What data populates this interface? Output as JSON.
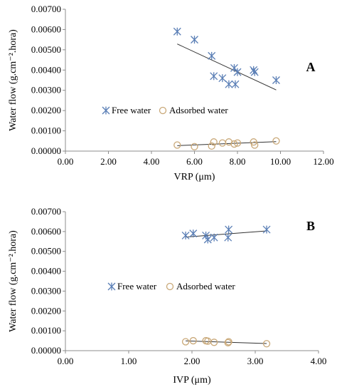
{
  "chart_data": [
    {
      "panel": "A",
      "type": "scatter",
      "xlabel": "VRP (μm)",
      "ylabel": "Water flow (g.cm⁻².hora)",
      "xlim": [
        0,
        12
      ],
      "ylim": [
        0,
        0.007
      ],
      "xticks": [
        "0.00",
        "2.00",
        "4.00",
        "6.00",
        "8.00",
        "10.00",
        "12.00"
      ],
      "yticks": [
        "0.00000",
        "0.00100",
        "0.00200",
        "0.00300",
        "0.00400",
        "0.00500",
        "0.00600",
        "0.00700"
      ],
      "grid": false,
      "legend": "center-left",
      "series": [
        {
          "name": "Free water",
          "marker": "asterisk",
          "color": "#5b7fb6",
          "trendline": true,
          "points": [
            [
              5.2,
              0.0059
            ],
            [
              6.0,
              0.0055
            ],
            [
              6.8,
              0.0047
            ],
            [
              6.9,
              0.0037
            ],
            [
              7.3,
              0.0036
            ],
            [
              7.6,
              0.0033
            ],
            [
              7.85,
              0.0041
            ],
            [
              8.0,
              0.0039
            ],
            [
              7.9,
              0.0033
            ],
            [
              8.75,
              0.004
            ],
            [
              8.8,
              0.0039
            ],
            [
              9.8,
              0.0035
            ]
          ]
        },
        {
          "name": "Adsorbed water",
          "marker": "circle",
          "color": "#c9a878",
          "trendline": true,
          "points": [
            [
              5.2,
              0.0003
            ],
            [
              6.0,
              0.00022
            ],
            [
              6.8,
              0.00025
            ],
            [
              6.9,
              0.00045
            ],
            [
              7.3,
              0.0004
            ],
            [
              7.6,
              0.00045
            ],
            [
              7.85,
              0.00035
            ],
            [
              8.0,
              0.0004
            ],
            [
              8.75,
              0.00045
            ],
            [
              8.8,
              0.0003
            ],
            [
              9.8,
              0.0005
            ]
          ]
        }
      ]
    },
    {
      "panel": "B",
      "type": "scatter",
      "xlabel": "IVP (μm)",
      "ylabel": "Water flow (g.cm⁻².hora)",
      "xlim": [
        0,
        4
      ],
      "ylim": [
        0,
        0.007
      ],
      "xticks": [
        "0.00",
        "1.00",
        "2.00",
        "3.00",
        "4.00"
      ],
      "yticks": [
        "0.00000",
        "0.00100",
        "0.00200",
        "0.00300",
        "0.00400",
        "0.00500",
        "0.00600",
        "0.00700"
      ],
      "grid": false,
      "legend": "center",
      "series": [
        {
          "name": "Free water",
          "marker": "asterisk",
          "color": "#5b7fb6",
          "trendline": true,
          "points": [
            [
              1.9,
              0.0058
            ],
            [
              2.02,
              0.0059
            ],
            [
              2.22,
              0.0058
            ],
            [
              2.25,
              0.0056
            ],
            [
              2.35,
              0.0057
            ],
            [
              2.58,
              0.0061
            ],
            [
              2.57,
              0.0057
            ],
            [
              3.18,
              0.0061
            ]
          ]
        },
        {
          "name": "Adsorbed water",
          "marker": "circle",
          "color": "#c9a878",
          "trendline": true,
          "points": [
            [
              1.9,
              0.00045
            ],
            [
              2.02,
              0.0005
            ],
            [
              2.22,
              0.0005
            ],
            [
              2.25,
              0.00048
            ],
            [
              2.35,
              0.00042
            ],
            [
              2.58,
              0.00045
            ],
            [
              2.57,
              0.0004
            ],
            [
              3.18,
              0.00035
            ]
          ]
        }
      ]
    }
  ]
}
